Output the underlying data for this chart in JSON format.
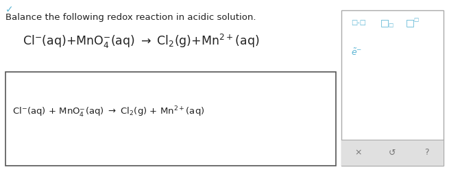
{
  "title": "Balance the following redox reaction in acidic solution.",
  "bg_color": "#ffffff",
  "box_edge_color": "#555555",
  "panel_border_color": "#aaaaaa",
  "accent_color": "#5ab4d4",
  "text_color": "#222222",
  "toolbar_bg": "#e0e0e0",
  "icon_color": "#5ab4d4",
  "title_fontsize": 9.5,
  "eq_fontsize": 12.5,
  "answer_fontsize": 9.5,
  "checkmark_fontsize": 10,
  "icon_fontsize": 8,
  "toolbar_fontsize": 9,
  "e_fontsize": 9,
  "fig_width": 6.55,
  "fig_height": 2.57,
  "dpi": 100
}
